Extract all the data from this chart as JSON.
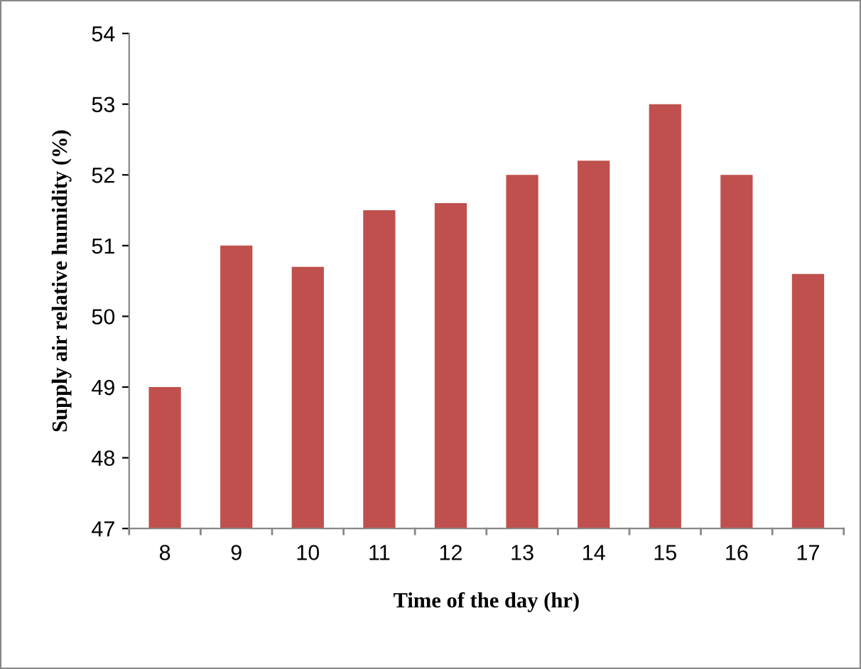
{
  "chart_data": {
    "type": "bar",
    "xlabel": "Time of the day (hr)",
    "ylabel": "Supply air relative humidity (%)",
    "categories": [
      "8",
      "9",
      "10",
      "11",
      "12",
      "13",
      "14",
      "15",
      "16",
      "17"
    ],
    "values": [
      49,
      51,
      50.7,
      51.5,
      51.6,
      52,
      52.2,
      53,
      52,
      50.6
    ],
    "color": "#c0504d",
    "ylim": [
      47,
      54
    ],
    "yticks": [
      47,
      48,
      49,
      50,
      51,
      52,
      53,
      54
    ],
    "grid": false,
    "legend": false
  }
}
